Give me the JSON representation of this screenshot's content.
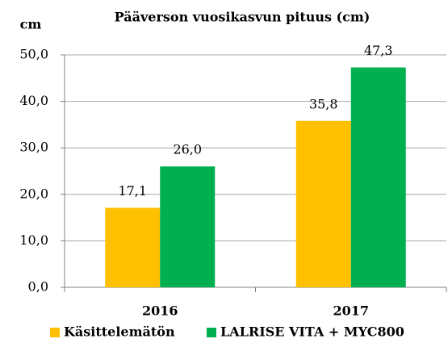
{
  "chart_data": {
    "type": "bar",
    "title": "Pääverson vuosikasvun pituus (cm)",
    "y_axis_label": "cm",
    "categories": [
      "2016",
      "2017"
    ],
    "series": [
      {
        "name": "Käsittelemätön",
        "color": "#ffc000",
        "values": [
          17.1,
          35.8
        ],
        "value_labels": [
          "17,1",
          "35,8"
        ]
      },
      {
        "name": "LALRISE VITA + MYC800",
        "color": "#00b050",
        "values": [
          26.0,
          47.3
        ],
        "value_labels": [
          "26,0",
          "47,3"
        ]
      }
    ],
    "ylim": [
      0,
      50
    ],
    "yticks": [
      {
        "value": 0,
        "label": "0,0"
      },
      {
        "value": 10,
        "label": "10,0"
      },
      {
        "value": 20,
        "label": "20,0"
      },
      {
        "value": 30,
        "label": "30,0"
      },
      {
        "value": 40,
        "label": "40,0"
      },
      {
        "value": 50,
        "label": "50,0"
      }
    ],
    "grid": true,
    "legend": "bottom"
  }
}
